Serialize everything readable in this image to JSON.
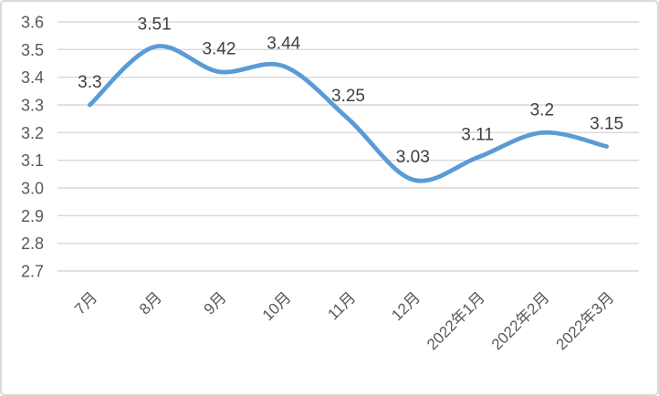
{
  "chart_data": {
    "type": "line",
    "title": "",
    "xlabel": "",
    "ylabel": "",
    "categories": [
      "7月",
      "8月",
      "9月",
      "10月",
      "11月",
      "12月",
      "2022年1月",
      "2022年2月",
      "2022年3月"
    ],
    "series": [
      {
        "name": "",
        "values": [
          3.3,
          3.51,
          3.42,
          3.44,
          3.25,
          3.03,
          3.11,
          3.2,
          3.15
        ],
        "data_labels": [
          "3.3",
          "3.51",
          "3.42",
          "3.44",
          "3.25",
          "3.03",
          "3.11",
          "3.2",
          "3.15"
        ]
      }
    ],
    "y_axis": {
      "min": 2.7,
      "max": 3.6,
      "step": 0.1,
      "tick_labels": [
        "3.6",
        "3.5",
        "3.4",
        "3.3",
        "3.2",
        "3.1",
        "3.0",
        "2.9",
        "2.8",
        "2.7"
      ]
    },
    "ylim": [
      2.7,
      3.6
    ],
    "grid": true,
    "legend": "none",
    "smooth": true,
    "x_label_rotation": -45,
    "colors": {
      "line": "#5B9BD5",
      "grid": "#D9D9D9",
      "axis_text": "#595959",
      "data_label_text": "#404040",
      "background": "#FFFFFF",
      "border": "#D9D9D9"
    }
  }
}
